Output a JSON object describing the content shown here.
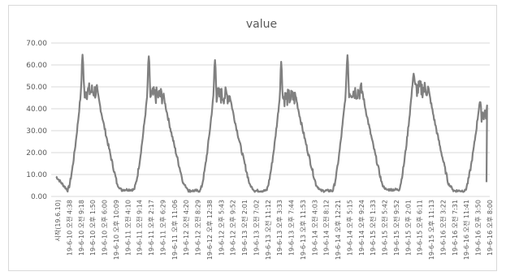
{
  "chart_data": {
    "type": "line",
    "title": "value",
    "xlabel": "",
    "ylabel": "",
    "ylim": [
      0,
      70
    ],
    "y_ticks": [
      "0.00",
      "10.00",
      "20.00",
      "30.00",
      "40.00",
      "50.00",
      "60.00",
      "70.00"
    ],
    "grid": true,
    "legend": "none",
    "line_color": "#808080",
    "x_tick_labels": [
      "시작(19.6.10)",
      "19-6-10 오전 4:38",
      "19-6-10 오전 9:18",
      "19-6-10 오후 1:50",
      "19-6-10 오후 6:00",
      "19-6-10 오후 10:09",
      "19-6-11 오전 4:10",
      "19-6-11 오전 9:14",
      "19-6-11 오후 2:17",
      "19-6-11 오후 6:29",
      "19-6-11 오후 11:06",
      "19-6-12 오전 4:20",
      "19-6-12 오전 8:29",
      "19-6-12 오후 12:38",
      "19-6-12 오후 5:43",
      "19-6-12 오후 9:52",
      "19-6-13 오전 2:01",
      "19-6-13 오전 7:02",
      "19-6-13 오전 11:12",
      "19-6-13 오후 3:33",
      "19-6-13 오후 7:44",
      "19-6-13 오후 11:53",
      "19-6-14 오전 4:03",
      "19-6-14 오전 8:12",
      "19-6-14 오후 12:21",
      "19-6-14 오후 5:15",
      "19-6-14 오후 9:24",
      "19-6-15 오전 1:33",
      "19-6-15 오전 5:42",
      "19-6-15 오전 9:52",
      "19-6-15 오후 2:01",
      "19-6-15 오후 6:11",
      "19-6-15 오후 11:13",
      "19-6-16 오전 3:22",
      "19-6-16 오전 7:31",
      "19-6-16 오전 11:41",
      "19-6-16 오후 3:50",
      "19-6-16 오후 8:00"
    ],
    "series": [
      {
        "daily_peaks": [
          {
            "day": "19-6-10",
            "min": 2.0,
            "peak": 63.5,
            "plateau": 48.0
          },
          {
            "day": "19-6-11",
            "min": 2.5,
            "peak": 63.0,
            "plateau": 46.0
          },
          {
            "day": "19-6-12",
            "min": 2.0,
            "peak": 61.0,
            "plateau": 46.0
          },
          {
            "day": "19-6-13",
            "min": 2.0,
            "peak": 60.0,
            "plateau": 45.0
          },
          {
            "day": "19-6-14",
            "min": 2.0,
            "peak": 63.5,
            "plateau": 48.0
          },
          {
            "day": "19-6-15",
            "min": 2.5,
            "peak": 55.0,
            "plateau": 49.0
          },
          {
            "day": "19-6-16",
            "min": 2.0,
            "peak": 42.0,
            "plateau": 38.0
          }
        ],
        "start_value": 8.5,
        "end_value": 6.5
      }
    ]
  }
}
